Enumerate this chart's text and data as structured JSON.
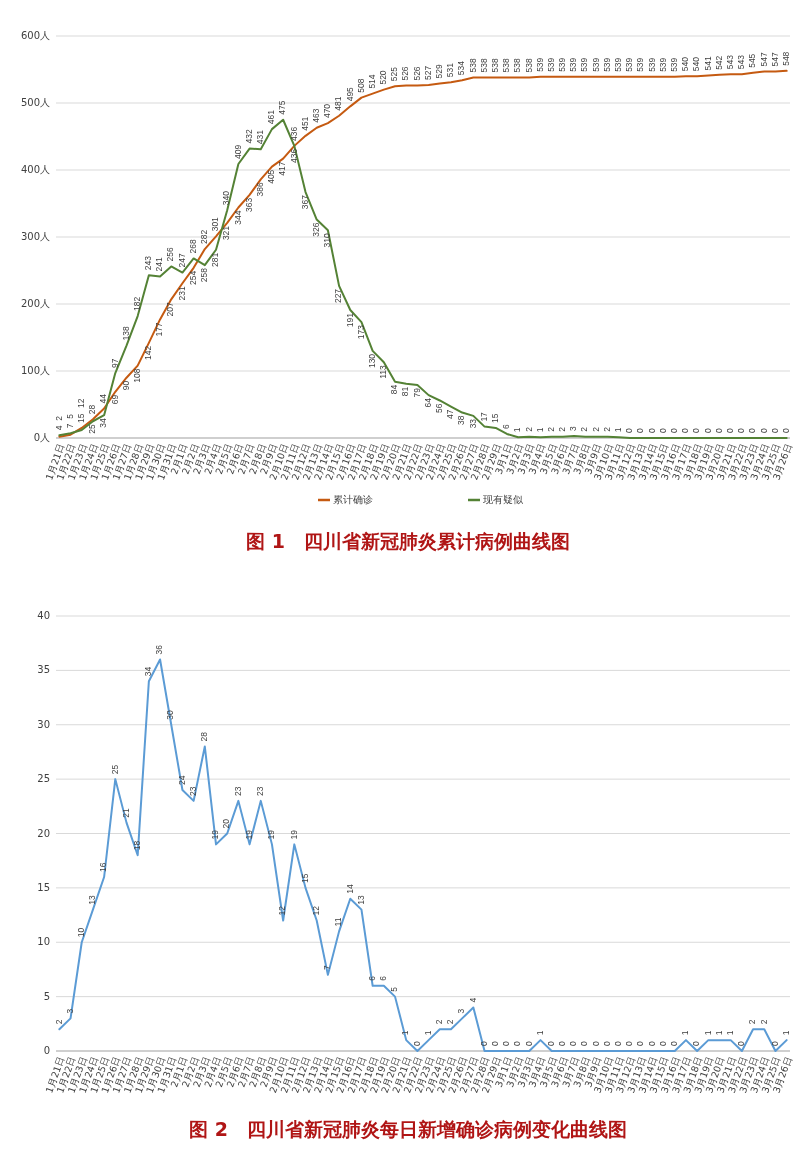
{
  "chart_data": [
    {
      "type": "line",
      "title": "图 1　四川省新冠肺炎累计病例曲线图",
      "categories": [
        "1月21日",
        "1月22日",
        "1月23日",
        "1月24日",
        "1月25日",
        "1月26日",
        "1月27日",
        "1月28日",
        "1月29日",
        "1月30日",
        "1月31日",
        "2月1日",
        "2月2日",
        "2月3日",
        "2月4日",
        "2月5日",
        "2月6日",
        "2月7日",
        "2月8日",
        "2月9日",
        "2月10日",
        "2月11日",
        "2月12日",
        "2月13日",
        "2月14日",
        "2月15日",
        "2月16日",
        "2月17日",
        "2月18日",
        "2月19日",
        "2月20日",
        "2月21日",
        "2月22日",
        "2月23日",
        "2月24日",
        "2月25日",
        "2月26日",
        "2月27日",
        "2月28日",
        "2月29日",
        "3月1日",
        "3月2日",
        "3月3日",
        "3月4日",
        "3月5日",
        "3月6日",
        "3月7日",
        "3月8日",
        "3月9日",
        "3月10日",
        "3月11日",
        "3月12日",
        "3月13日",
        "3月14日",
        "3月15日",
        "3月16日",
        "3月17日",
        "3月18日",
        "3月19日",
        "3月20日",
        "3月21日",
        "3月22日",
        "3月23日",
        "3月24日",
        "3月25日",
        "3月26日"
      ],
      "series": [
        {
          "name": "累计确诊",
          "color": "#c55a11",
          "values": [
            2,
            5,
            15,
            28,
            44,
            69,
            90,
            108,
            142,
            177,
            207,
            231,
            254,
            282,
            301,
            321,
            344,
            363,
            386,
            405,
            417,
            436,
            451,
            463,
            470,
            481,
            495,
            508,
            514,
            520,
            525,
            526,
            526,
            527,
            529,
            531,
            534,
            538,
            538,
            538,
            538,
            538,
            538,
            539,
            539,
            539,
            539,
            539,
            539,
            539,
            539,
            539,
            539,
            539,
            539,
            539,
            540,
            540,
            541,
            542,
            543,
            543,
            545,
            547,
            547,
            548
          ]
        },
        {
          "name": "现有疑似",
          "color": "#548235",
          "values": [
            4,
            7,
            12,
            25,
            34,
            97,
            138,
            182,
            243,
            241,
            256,
            247,
            268,
            258,
            281,
            340,
            409,
            432,
            431,
            461,
            475,
            436,
            367,
            326,
            310,
            227,
            191,
            173,
            130,
            113,
            84,
            81,
            79,
            64,
            56,
            47,
            38,
            33,
            17,
            15,
            6,
            1,
            2,
            1,
            2,
            2,
            3,
            2,
            2,
            2,
            1,
            0,
            0,
            0,
            0,
            0,
            0,
            0,
            0,
            0,
            0,
            0,
            0,
            0,
            0,
            0
          ]
        }
      ],
      "ylim": [
        0,
        600
      ],
      "yticks": [
        {
          "value": 0,
          "label": "0人"
        },
        {
          "value": 100,
          "label": "100人"
        },
        {
          "value": 200,
          "label": "200人"
        },
        {
          "value": 300,
          "label": "300人"
        },
        {
          "value": 400,
          "label": "400人"
        },
        {
          "value": 500,
          "label": "500人"
        },
        {
          "value": 600,
          "label": "600人"
        }
      ],
      "grid": "y",
      "legend": "bottom",
      "data_labels": true,
      "marker": "none"
    },
    {
      "type": "line",
      "title": "图 2　四川省新冠肺炎每日新增确诊病例变化曲线图",
      "categories": [
        "1月21日",
        "1月22日",
        "1月23日",
        "1月24日",
        "1月25日",
        "1月26日",
        "1月27日",
        "1月28日",
        "1月29日",
        "1月30日",
        "1月31日",
        "2月1日",
        "2月2日",
        "2月3日",
        "2月4日",
        "2月5日",
        "2月6日",
        "2月7日",
        "2月8日",
        "2月9日",
        "2月10日",
        "2月11日",
        "2月12日",
        "2月13日",
        "2月14日",
        "2月15日",
        "2月16日",
        "2月17日",
        "2月18日",
        "2月19日",
        "2月20日",
        "2月21日",
        "2月22日",
        "2月23日",
        "2月24日",
        "2月25日",
        "2月26日",
        "2月27日",
        "2月28日",
        "2月29日",
        "3月1日",
        "3月2日",
        "3月3日",
        "3月4日",
        "3月5日",
        "3月6日",
        "3月7日",
        "3月8日",
        "3月9日",
        "3月10日",
        "3月11日",
        "3月12日",
        "3月13日",
        "3月14日",
        "3月15日",
        "3月16日",
        "3月17日",
        "3月18日",
        "3月19日",
        "3月20日",
        "3月21日",
        "3月22日",
        "3月23日",
        "3月24日",
        "3月25日",
        "3月26日"
      ],
      "series": [
        {
          "color": "#5b9bd5",
          "values": [
            2,
            3,
            10,
            13,
            16,
            25,
            21,
            18,
            34,
            36,
            30,
            24,
            23,
            28,
            19,
            20,
            23,
            19,
            23,
            19,
            12,
            19,
            15,
            12,
            7,
            11,
            14,
            13,
            6,
            6,
            5,
            1,
            0,
            1,
            2,
            2,
            3,
            4,
            0,
            0,
            0,
            0,
            0,
            1,
            0,
            0,
            0,
            0,
            0,
            0,
            0,
            0,
            0,
            0,
            0,
            0,
            1,
            0,
            1,
            1,
            1,
            0,
            2,
            2,
            0,
            1
          ]
        }
      ],
      "ylim": [
        0,
        40
      ],
      "yticks": [
        0,
        5,
        10,
        15,
        20,
        25,
        30,
        35,
        40
      ],
      "grid": "y",
      "data_labels": true,
      "marker": "none"
    }
  ]
}
